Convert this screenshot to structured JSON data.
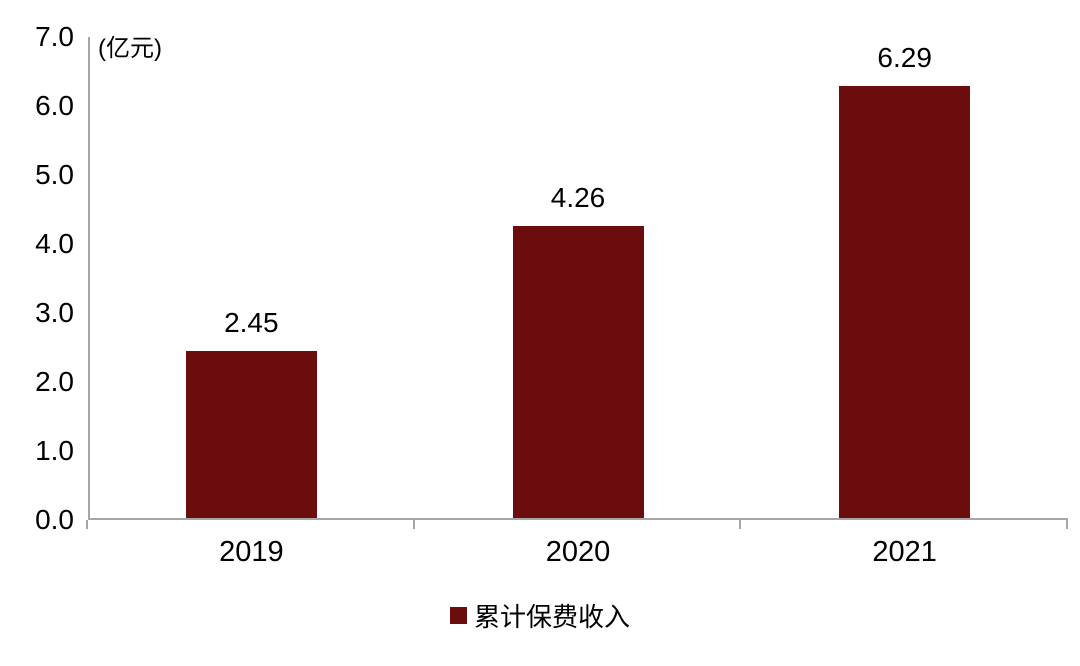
{
  "chart_data": {
    "type": "bar",
    "title": "",
    "unit_label": "(亿元)",
    "categories": [
      "2019",
      "2020",
      "2021"
    ],
    "series": [
      {
        "name": "累计保费收入",
        "values": [
          2.45,
          4.26,
          6.29
        ]
      }
    ],
    "value_labels": [
      "2.45",
      "4.26",
      "6.29"
    ],
    "xlabel": "",
    "ylabel": "(亿元)",
    "ylim": [
      0,
      7
    ],
    "y_tick_step": 1.0,
    "y_tick_labels": [
      "7.0",
      "6.0",
      "5.0",
      "4.0",
      "3.0",
      "2.0",
      "1.0",
      "0.0"
    ],
    "grid": false,
    "legend_position": "bottom",
    "bar_color": "#6b0d0d",
    "axis_color": "#a6a6a6",
    "text_color": "#000000"
  },
  "legend": {
    "label": "累计保费收入",
    "swatch_color": "#6b0d0d"
  }
}
